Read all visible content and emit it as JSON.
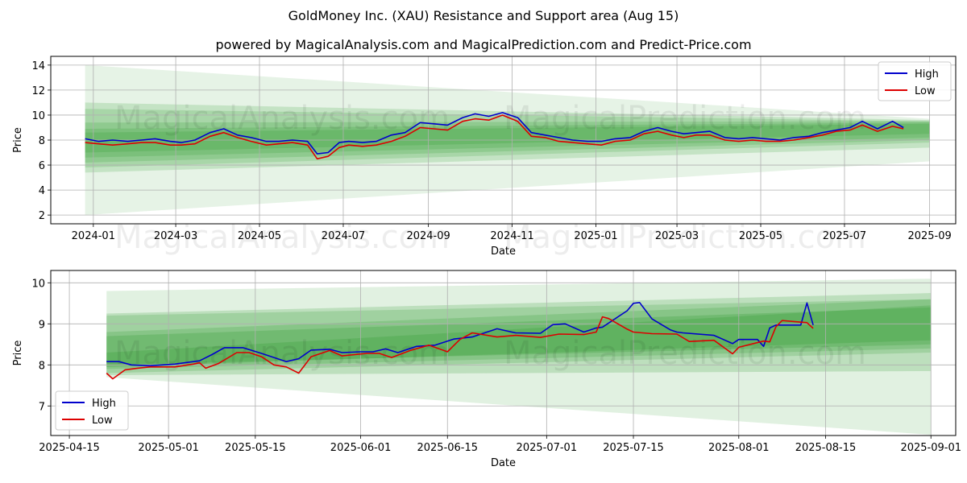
{
  "title": "GoldMoney Inc. (XAU) Resistance and Support area (Aug 15)",
  "subtitle": "powered by MagicalAnalysis.com and MagicalPrediction.com and Predict-Price.com",
  "watermark": {
    "left": "MagicalAnalysis.com",
    "right": "MagicalPrediction.com"
  },
  "colors": {
    "high": "#0000cc",
    "low": "#dd0000",
    "band": "#2e9a2e",
    "grid": "#b0b0b0"
  },
  "chart_data": [
    {
      "type": "line",
      "xlabel": "Date",
      "ylabel": "Price",
      "x_ticks": [
        "2024-01",
        "2024-03",
        "2024-05",
        "2024-07",
        "2024-09",
        "2024-11",
        "2025-01",
        "2025-03",
        "2025-05",
        "2025-07",
        "2025-09"
      ],
      "y_ticks": [
        2,
        4,
        6,
        8,
        10,
        12,
        14
      ],
      "xlim": [
        "2023-12-01",
        "2025-09-20"
      ],
      "ylim": [
        1.3,
        14.7
      ],
      "grid": true,
      "legend_position": "top-right",
      "legend": [
        "High",
        "Low"
      ],
      "series": [
        {
          "name": "High",
          "x": [
            "2023-12-26",
            "2024-01-05",
            "2024-01-15",
            "2024-01-26",
            "2024-02-05",
            "2024-02-15",
            "2024-02-26",
            "2024-03-05",
            "2024-03-15",
            "2024-03-26",
            "2024-04-05",
            "2024-04-15",
            "2024-04-25",
            "2024-05-06",
            "2024-05-15",
            "2024-05-25",
            "2024-06-05",
            "2024-06-12",
            "2024-06-20",
            "2024-06-28",
            "2024-07-05",
            "2024-07-15",
            "2024-07-25",
            "2024-08-05",
            "2024-08-15",
            "2024-08-26",
            "2024-09-05",
            "2024-09-15",
            "2024-09-26",
            "2024-10-05",
            "2024-10-15",
            "2024-10-25",
            "2024-11-05",
            "2024-11-15",
            "2024-11-25",
            "2024-12-05",
            "2024-12-15",
            "2024-12-26",
            "2025-01-05",
            "2025-01-15",
            "2025-01-26",
            "2025-02-05",
            "2025-02-15",
            "2025-02-25",
            "2025-03-06",
            "2025-03-15",
            "2025-03-25",
            "2025-04-05",
            "2025-04-15",
            "2025-04-25",
            "2025-05-05",
            "2025-05-15",
            "2025-05-25",
            "2025-06-05",
            "2025-06-15",
            "2025-06-25",
            "2025-07-05",
            "2025-07-14",
            "2025-07-25",
            "2025-08-05",
            "2025-08-13"
          ],
          "values": [
            8.1,
            7.9,
            8.0,
            7.9,
            8.0,
            8.1,
            7.9,
            7.8,
            8.0,
            8.6,
            8.9,
            8.4,
            8.2,
            7.9,
            7.9,
            8.0,
            7.9,
            6.9,
            7.0,
            7.8,
            7.9,
            7.8,
            7.9,
            8.4,
            8.6,
            9.4,
            9.3,
            9.2,
            9.8,
            10.1,
            9.9,
            10.2,
            9.8,
            8.6,
            8.4,
            8.2,
            8.0,
            7.9,
            7.9,
            8.1,
            8.2,
            8.7,
            9.0,
            8.7,
            8.5,
            8.6,
            8.7,
            8.2,
            8.1,
            8.2,
            8.1,
            8.0,
            8.2,
            8.3,
            8.6,
            8.8,
            9.0,
            9.5,
            8.9,
            9.5,
            9.0
          ]
        },
        {
          "name": "Low",
          "x": [
            "2023-12-26",
            "2024-01-05",
            "2024-01-15",
            "2024-01-26",
            "2024-02-05",
            "2024-02-15",
            "2024-02-26",
            "2024-03-05",
            "2024-03-15",
            "2024-03-26",
            "2024-04-05",
            "2024-04-15",
            "2024-04-25",
            "2024-05-06",
            "2024-05-15",
            "2024-05-25",
            "2024-06-05",
            "2024-06-12",
            "2024-06-20",
            "2024-06-28",
            "2024-07-05",
            "2024-07-15",
            "2024-07-25",
            "2024-08-05",
            "2024-08-15",
            "2024-08-26",
            "2024-09-05",
            "2024-09-15",
            "2024-09-26",
            "2024-10-05",
            "2024-10-15",
            "2024-10-25",
            "2024-11-05",
            "2024-11-15",
            "2024-11-25",
            "2024-12-05",
            "2024-12-15",
            "2024-12-26",
            "2025-01-05",
            "2025-01-15",
            "2025-01-26",
            "2025-02-05",
            "2025-02-15",
            "2025-02-25",
            "2025-03-06",
            "2025-03-15",
            "2025-03-25",
            "2025-04-05",
            "2025-04-15",
            "2025-04-25",
            "2025-05-05",
            "2025-05-15",
            "2025-05-25",
            "2025-06-05",
            "2025-06-15",
            "2025-06-25",
            "2025-07-05",
            "2025-07-14",
            "2025-07-25",
            "2025-08-05",
            "2025-08-13"
          ],
          "values": [
            7.8,
            7.7,
            7.6,
            7.7,
            7.8,
            7.8,
            7.6,
            7.6,
            7.7,
            8.3,
            8.6,
            8.2,
            7.9,
            7.6,
            7.7,
            7.8,
            7.6,
            6.5,
            6.7,
            7.4,
            7.6,
            7.5,
            7.6,
            7.9,
            8.3,
            9.0,
            8.9,
            8.8,
            9.5,
            9.7,
            9.6,
            10.0,
            9.5,
            8.3,
            8.2,
            7.9,
            7.8,
            7.7,
            7.6,
            7.9,
            8.0,
            8.5,
            8.7,
            8.4,
            8.2,
            8.4,
            8.4,
            8.0,
            7.9,
            8.0,
            7.9,
            7.9,
            8.0,
            8.2,
            8.4,
            8.7,
            8.8,
            9.2,
            8.7,
            9.1,
            8.9
          ]
        }
      ]
    },
    {
      "type": "line",
      "xlabel": "Date",
      "ylabel": "Price",
      "x_ticks": [
        "2025-04-15",
        "2025-05-01",
        "2025-05-15",
        "2025-06-01",
        "2025-06-15",
        "2025-07-01",
        "2025-07-15",
        "2025-08-01",
        "2025-08-15",
        "2025-09-01"
      ],
      "y_ticks": [
        7,
        8,
        9,
        10
      ],
      "xlim": [
        "2025-04-12",
        "2025-09-05"
      ],
      "ylim": [
        6.28,
        10.3
      ],
      "grid": true,
      "legend_position": "bottom-left",
      "legend": [
        "High",
        "Low"
      ],
      "series": [
        {
          "name": "High",
          "x": [
            "2025-04-21",
            "2025-04-23",
            "2025-04-25",
            "2025-04-28",
            "2025-05-02",
            "2025-05-06",
            "2025-05-08",
            "2025-05-10",
            "2025-05-13",
            "2025-05-16",
            "2025-05-20",
            "2025-05-22",
            "2025-05-24",
            "2025-05-27",
            "2025-05-29",
            "2025-06-01",
            "2025-06-03",
            "2025-06-05",
            "2025-06-07",
            "2025-06-10",
            "2025-06-13",
            "2025-06-16",
            "2025-06-19",
            "2025-06-23",
            "2025-06-26",
            "2025-06-30",
            "2025-07-02",
            "2025-07-04",
            "2025-07-07",
            "2025-07-09",
            "2025-07-10",
            "2025-07-14",
            "2025-07-15",
            "2025-07-16",
            "2025-07-18",
            "2025-07-21",
            "2025-07-22",
            "2025-07-23",
            "2025-07-28",
            "2025-07-31",
            "2025-08-01",
            "2025-08-04",
            "2025-08-05",
            "2025-08-06",
            "2025-08-07",
            "2025-08-11",
            "2025-08-12",
            "2025-08-13"
          ],
          "values": [
            8.08,
            8.08,
            8.0,
            7.98,
            8.02,
            8.1,
            8.25,
            8.42,
            8.42,
            8.28,
            8.08,
            8.15,
            8.36,
            8.38,
            8.3,
            8.32,
            8.32,
            8.39,
            8.3,
            8.45,
            8.48,
            8.63,
            8.68,
            8.88,
            8.78,
            8.77,
            8.98,
            9.0,
            8.8,
            8.9,
            8.92,
            9.32,
            9.5,
            9.52,
            9.12,
            8.85,
            8.8,
            8.78,
            8.72,
            8.52,
            8.62,
            8.62,
            8.45,
            8.9,
            8.97,
            8.97,
            9.51,
            8.97
          ]
        },
        {
          "name": "Low",
          "x": [
            "2025-04-21",
            "2025-04-22",
            "2025-04-24",
            "2025-04-26",
            "2025-04-28",
            "2025-05-02",
            "2025-05-05",
            "2025-05-06",
            "2025-05-07",
            "2025-05-09",
            "2025-05-12",
            "2025-05-14",
            "2025-05-16",
            "2025-05-18",
            "2025-05-20",
            "2025-05-22",
            "2025-05-24",
            "2025-05-27",
            "2025-05-29",
            "2025-06-02",
            "2025-06-04",
            "2025-06-06",
            "2025-06-09",
            "2025-06-12",
            "2025-06-15",
            "2025-06-17",
            "2025-06-19",
            "2025-06-23",
            "2025-06-26",
            "2025-06-30",
            "2025-07-03",
            "2025-07-07",
            "2025-07-09",
            "2025-07-10",
            "2025-07-11",
            "2025-07-14",
            "2025-07-15",
            "2025-07-18",
            "2025-07-22",
            "2025-07-24",
            "2025-07-28",
            "2025-07-31",
            "2025-08-01",
            "2025-08-05",
            "2025-08-06",
            "2025-08-07",
            "2025-08-08",
            "2025-08-12",
            "2025-08-13"
          ],
          "values": [
            7.8,
            7.66,
            7.88,
            7.92,
            7.95,
            7.95,
            8.02,
            8.05,
            7.92,
            8.03,
            8.3,
            8.3,
            8.2,
            8.0,
            7.95,
            7.8,
            8.2,
            8.35,
            8.22,
            8.28,
            8.28,
            8.18,
            8.35,
            8.48,
            8.32,
            8.62,
            8.78,
            8.68,
            8.72,
            8.67,
            8.75,
            8.74,
            8.8,
            9.17,
            9.13,
            8.87,
            8.8,
            8.76,
            8.75,
            8.57,
            8.6,
            8.27,
            8.43,
            8.58,
            8.56,
            8.93,
            9.08,
            9.03,
            8.89
          ]
        }
      ]
    }
  ]
}
